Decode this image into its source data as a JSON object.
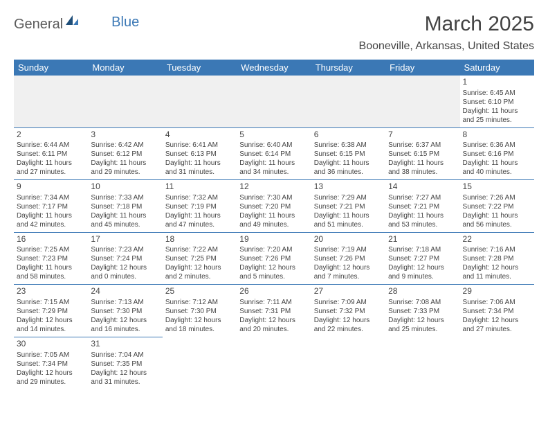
{
  "brand": {
    "part1": "General",
    "part2": "Blue"
  },
  "title": "March 2025",
  "location": "Booneville, Arkansas, United States",
  "colors": {
    "header_bg": "#3b78b5",
    "header_text": "#ffffff",
    "cell_border": "#3b78b5",
    "text": "#434343",
    "blank_bg": "#f0f0f0",
    "page_bg": "#ffffff"
  },
  "typography": {
    "title_fontsize": 30,
    "location_fontsize": 16,
    "th_fontsize": 13,
    "daynum_fontsize": 12,
    "cell_fontsize": 10
  },
  "days_of_week": [
    "Sunday",
    "Monday",
    "Tuesday",
    "Wednesday",
    "Thursday",
    "Friday",
    "Saturday"
  ],
  "weeks": [
    [
      null,
      null,
      null,
      null,
      null,
      null,
      {
        "n": "1",
        "sunrise": "Sunrise: 6:45 AM",
        "sunset": "Sunset: 6:10 PM",
        "dl1": "Daylight: 11 hours",
        "dl2": "and 25 minutes."
      }
    ],
    [
      {
        "n": "2",
        "sunrise": "Sunrise: 6:44 AM",
        "sunset": "Sunset: 6:11 PM",
        "dl1": "Daylight: 11 hours",
        "dl2": "and 27 minutes."
      },
      {
        "n": "3",
        "sunrise": "Sunrise: 6:42 AM",
        "sunset": "Sunset: 6:12 PM",
        "dl1": "Daylight: 11 hours",
        "dl2": "and 29 minutes."
      },
      {
        "n": "4",
        "sunrise": "Sunrise: 6:41 AM",
        "sunset": "Sunset: 6:13 PM",
        "dl1": "Daylight: 11 hours",
        "dl2": "and 31 minutes."
      },
      {
        "n": "5",
        "sunrise": "Sunrise: 6:40 AM",
        "sunset": "Sunset: 6:14 PM",
        "dl1": "Daylight: 11 hours",
        "dl2": "and 34 minutes."
      },
      {
        "n": "6",
        "sunrise": "Sunrise: 6:38 AM",
        "sunset": "Sunset: 6:15 PM",
        "dl1": "Daylight: 11 hours",
        "dl2": "and 36 minutes."
      },
      {
        "n": "7",
        "sunrise": "Sunrise: 6:37 AM",
        "sunset": "Sunset: 6:15 PM",
        "dl1": "Daylight: 11 hours",
        "dl2": "and 38 minutes."
      },
      {
        "n": "8",
        "sunrise": "Sunrise: 6:36 AM",
        "sunset": "Sunset: 6:16 PM",
        "dl1": "Daylight: 11 hours",
        "dl2": "and 40 minutes."
      }
    ],
    [
      {
        "n": "9",
        "sunrise": "Sunrise: 7:34 AM",
        "sunset": "Sunset: 7:17 PM",
        "dl1": "Daylight: 11 hours",
        "dl2": "and 42 minutes."
      },
      {
        "n": "10",
        "sunrise": "Sunrise: 7:33 AM",
        "sunset": "Sunset: 7:18 PM",
        "dl1": "Daylight: 11 hours",
        "dl2": "and 45 minutes."
      },
      {
        "n": "11",
        "sunrise": "Sunrise: 7:32 AM",
        "sunset": "Sunset: 7:19 PM",
        "dl1": "Daylight: 11 hours",
        "dl2": "and 47 minutes."
      },
      {
        "n": "12",
        "sunrise": "Sunrise: 7:30 AM",
        "sunset": "Sunset: 7:20 PM",
        "dl1": "Daylight: 11 hours",
        "dl2": "and 49 minutes."
      },
      {
        "n": "13",
        "sunrise": "Sunrise: 7:29 AM",
        "sunset": "Sunset: 7:21 PM",
        "dl1": "Daylight: 11 hours",
        "dl2": "and 51 minutes."
      },
      {
        "n": "14",
        "sunrise": "Sunrise: 7:27 AM",
        "sunset": "Sunset: 7:21 PM",
        "dl1": "Daylight: 11 hours",
        "dl2": "and 53 minutes."
      },
      {
        "n": "15",
        "sunrise": "Sunrise: 7:26 AM",
        "sunset": "Sunset: 7:22 PM",
        "dl1": "Daylight: 11 hours",
        "dl2": "and 56 minutes."
      }
    ],
    [
      {
        "n": "16",
        "sunrise": "Sunrise: 7:25 AM",
        "sunset": "Sunset: 7:23 PM",
        "dl1": "Daylight: 11 hours",
        "dl2": "and 58 minutes."
      },
      {
        "n": "17",
        "sunrise": "Sunrise: 7:23 AM",
        "sunset": "Sunset: 7:24 PM",
        "dl1": "Daylight: 12 hours",
        "dl2": "and 0 minutes."
      },
      {
        "n": "18",
        "sunrise": "Sunrise: 7:22 AM",
        "sunset": "Sunset: 7:25 PM",
        "dl1": "Daylight: 12 hours",
        "dl2": "and 2 minutes."
      },
      {
        "n": "19",
        "sunrise": "Sunrise: 7:20 AM",
        "sunset": "Sunset: 7:26 PM",
        "dl1": "Daylight: 12 hours",
        "dl2": "and 5 minutes."
      },
      {
        "n": "20",
        "sunrise": "Sunrise: 7:19 AM",
        "sunset": "Sunset: 7:26 PM",
        "dl1": "Daylight: 12 hours",
        "dl2": "and 7 minutes."
      },
      {
        "n": "21",
        "sunrise": "Sunrise: 7:18 AM",
        "sunset": "Sunset: 7:27 PM",
        "dl1": "Daylight: 12 hours",
        "dl2": "and 9 minutes."
      },
      {
        "n": "22",
        "sunrise": "Sunrise: 7:16 AM",
        "sunset": "Sunset: 7:28 PM",
        "dl1": "Daylight: 12 hours",
        "dl2": "and 11 minutes."
      }
    ],
    [
      {
        "n": "23",
        "sunrise": "Sunrise: 7:15 AM",
        "sunset": "Sunset: 7:29 PM",
        "dl1": "Daylight: 12 hours",
        "dl2": "and 14 minutes."
      },
      {
        "n": "24",
        "sunrise": "Sunrise: 7:13 AM",
        "sunset": "Sunset: 7:30 PM",
        "dl1": "Daylight: 12 hours",
        "dl2": "and 16 minutes."
      },
      {
        "n": "25",
        "sunrise": "Sunrise: 7:12 AM",
        "sunset": "Sunset: 7:30 PM",
        "dl1": "Daylight: 12 hours",
        "dl2": "and 18 minutes."
      },
      {
        "n": "26",
        "sunrise": "Sunrise: 7:11 AM",
        "sunset": "Sunset: 7:31 PM",
        "dl1": "Daylight: 12 hours",
        "dl2": "and 20 minutes."
      },
      {
        "n": "27",
        "sunrise": "Sunrise: 7:09 AM",
        "sunset": "Sunset: 7:32 PM",
        "dl1": "Daylight: 12 hours",
        "dl2": "and 22 minutes."
      },
      {
        "n": "28",
        "sunrise": "Sunrise: 7:08 AM",
        "sunset": "Sunset: 7:33 PM",
        "dl1": "Daylight: 12 hours",
        "dl2": "and 25 minutes."
      },
      {
        "n": "29",
        "sunrise": "Sunrise: 7:06 AM",
        "sunset": "Sunset: 7:34 PM",
        "dl1": "Daylight: 12 hours",
        "dl2": "and 27 minutes."
      }
    ],
    [
      {
        "n": "30",
        "sunrise": "Sunrise: 7:05 AM",
        "sunset": "Sunset: 7:34 PM",
        "dl1": "Daylight: 12 hours",
        "dl2": "and 29 minutes."
      },
      {
        "n": "31",
        "sunrise": "Sunrise: 7:04 AM",
        "sunset": "Sunset: 7:35 PM",
        "dl1": "Daylight: 12 hours",
        "dl2": "and 31 minutes."
      },
      null,
      null,
      null,
      null,
      null
    ]
  ]
}
